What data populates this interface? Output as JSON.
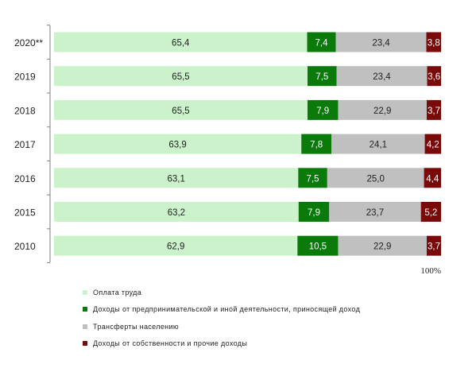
{
  "chart_data": {
    "type": "bar",
    "orientation": "horizontal",
    "stacked": true,
    "normalized": true,
    "categories": [
      "2020**",
      "2019",
      "2018",
      "2017",
      "2016",
      "2015",
      "2010"
    ],
    "series": [
      {
        "name": "Оплата труда",
        "color": "#ccf2cc",
        "values": [
          65.4,
          65.5,
          65.5,
          63.9,
          63.1,
          63.2,
          62.9
        ],
        "labels": [
          "65,4",
          "65,5",
          "65,5",
          "63,9",
          "63,1",
          "63,2",
          "62,9"
        ]
      },
      {
        "name": "Доходы от предпринимательской и иной деятельности, приносящей доход",
        "color": "#0a7a0a",
        "values": [
          7.4,
          7.5,
          7.9,
          7.8,
          7.5,
          7.9,
          10.5
        ],
        "labels": [
          "7,4",
          "7,5",
          "7,9",
          "7,8",
          "7,5",
          "7,9",
          "10,5"
        ]
      },
      {
        "name": "Трансферты населению",
        "color": "#c0c0c0",
        "values": [
          23.4,
          23.4,
          22.9,
          24.1,
          25.0,
          23.7,
          22.9
        ],
        "labels": [
          "23,4",
          "23,4",
          "22,9",
          "24,1",
          "25,0",
          "23,7",
          "22,9"
        ]
      },
      {
        "name": "Доходы от собственности и прочие доходы",
        "color": "#7a0a0a",
        "values": [
          3.8,
          3.6,
          3.7,
          4.2,
          4.4,
          5.2,
          3.7
        ],
        "labels": [
          "3,8",
          "3,6",
          "3,7",
          "4,2",
          "4,4",
          "5,2",
          "3,7"
        ]
      }
    ],
    "xlim": [
      0,
      100
    ],
    "x_end_label": "100%",
    "legend_position": "bottom",
    "grid": false
  }
}
